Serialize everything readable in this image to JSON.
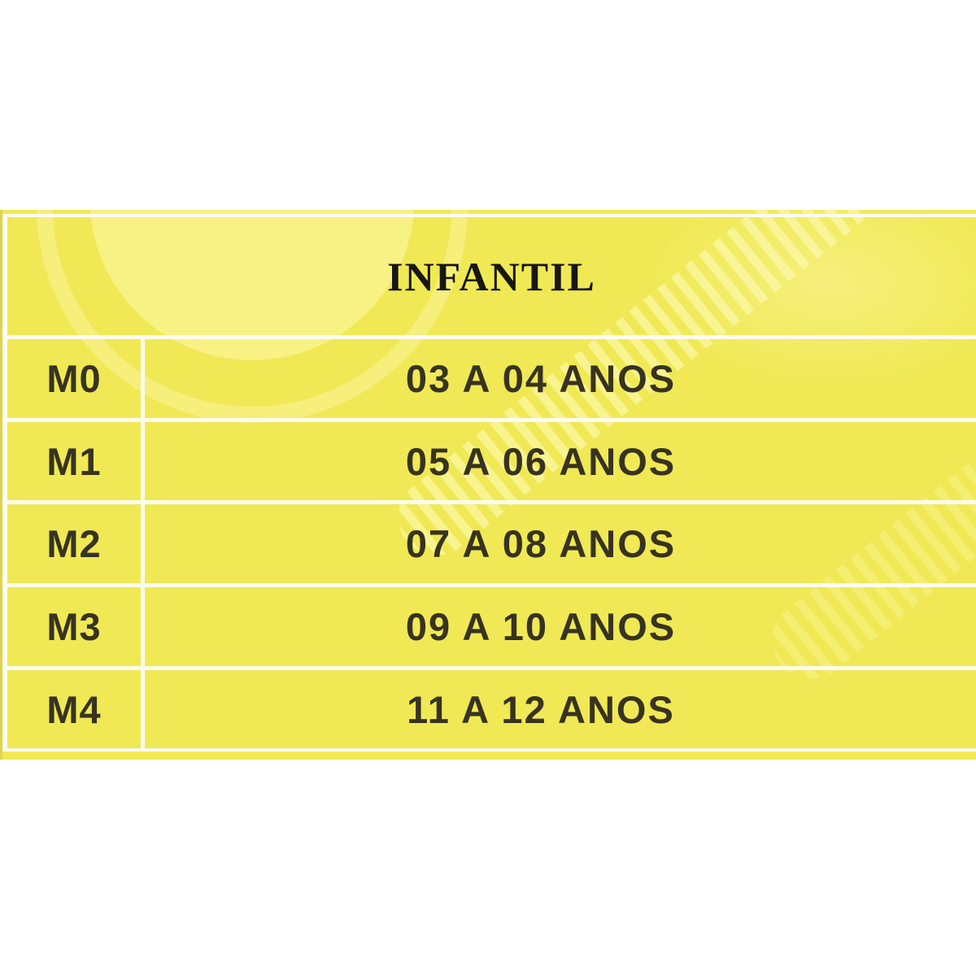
{
  "size_chart": {
    "title": "INFANTIL",
    "rows": [
      {
        "size": "M0",
        "age_range": "03 A 04 ANOS"
      },
      {
        "size": "M1",
        "age_range": "05 A 06 ANOS"
      },
      {
        "size": "M2",
        "age_range": "07 A 08 ANOS"
      },
      {
        "size": "M3",
        "age_range": "09 A 10 ANOS"
      },
      {
        "size": "M4",
        "age_range": "11 A 12 ANOS"
      }
    ],
    "colors": {
      "table_background": "#f0e955",
      "grid_lines": "#fcfcf0",
      "watermark_light_yellow": "#f7f095",
      "body_text": "#373320",
      "title_text": "#171710",
      "page_background": "#ffffff"
    }
  },
  "chart_data": {
    "type": "table",
    "title": "INFANTIL",
    "rows": [
      [
        "M0",
        "03 A 04 ANOS"
      ],
      [
        "M1",
        "05 A 06 ANOS"
      ],
      [
        "M2",
        "07 A 08 ANOS"
      ],
      [
        "M3",
        "09 A 10 ANOS"
      ],
      [
        "M4",
        "11 A 12 ANOS"
      ]
    ],
    "layout": {
      "header_spans_full_width": true,
      "column_count": 2,
      "grid": "white lines on yellow background",
      "watermarks": [
        "light circle ring upper-left",
        "diagonal striped strap center-right"
      ]
    }
  }
}
